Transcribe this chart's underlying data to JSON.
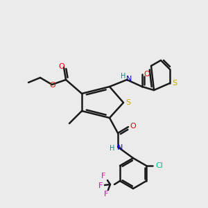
{
  "bg_color": "#ebebeb",
  "bond_color": "#1a1a1a",
  "colors": {
    "O": "#dd0000",
    "N": "#0000cc",
    "S_main": "#ccaa00",
    "S_thienyl": "#ccaa00",
    "Cl": "#00bb88",
    "F": "#dd00bb",
    "H": "#008888",
    "C": "#1a1a1a"
  },
  "figsize": [
    3.0,
    3.0
  ],
  "dpi": 100
}
